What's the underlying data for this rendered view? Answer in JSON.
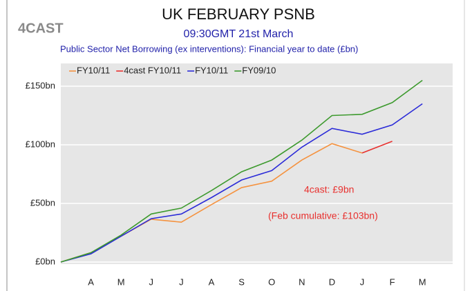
{
  "chart_data": {
    "type": "line",
    "logo": "4CAST",
    "title": "UK FEBRUARY PSNB",
    "subtitle": "09:30GMT 21st March",
    "description": "Public Sector Net Borrowing (ex interventions): Financial year to date (£bn)",
    "annotations": [
      "4cast: £9bn",
      "(Feb cumulative: £103bn)"
    ],
    "categories": [
      null,
      "A",
      "M",
      "J",
      "J",
      "A",
      "S",
      "O",
      "N",
      "D",
      "J",
      "F",
      "M"
    ],
    "series": [
      {
        "name": "FY10/11",
        "color": "#f5923e",
        "values": [
          0,
          8,
          22,
          36.5,
          34,
          49,
          63.5,
          69,
          87,
          101,
          93,
          null,
          null
        ]
      },
      {
        "name": "4cast FY10/11",
        "color": "#e8302e",
        "values": [
          null,
          null,
          null,
          null,
          null,
          null,
          null,
          null,
          null,
          null,
          93,
          103,
          null
        ]
      },
      {
        "name": "FY10/11",
        "color": "#2b2bd8",
        "values": [
          0,
          7,
          22,
          37,
          41,
          55,
          70,
          78,
          98,
          114,
          109,
          117,
          135
        ]
      },
      {
        "name": "FY09/10",
        "color": "#3d9a2e",
        "values": [
          0,
          8,
          23,
          41,
          46,
          61,
          77,
          87,
          104,
          125,
          126,
          136,
          155
        ]
      }
    ],
    "ylim": [
      0,
      170
    ],
    "yticks": [
      {
        "value": 0,
        "label": "£0bn"
      },
      {
        "value": 50,
        "label": "£50bn"
      },
      {
        "value": 100,
        "label": "£100bn"
      },
      {
        "value": 150,
        "label": "£150bn"
      }
    ],
    "grid": true,
    "legend": "top-left"
  }
}
